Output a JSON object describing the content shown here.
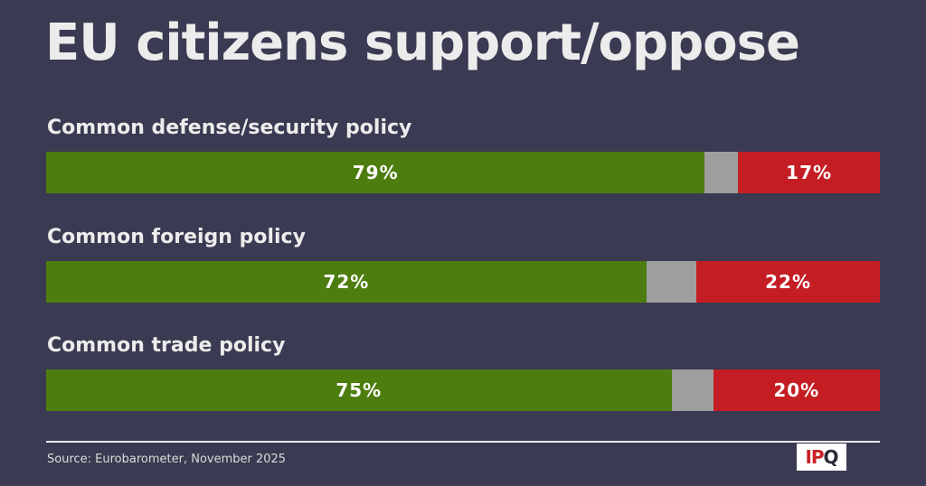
{
  "title": "EU citizens support/oppose",
  "colors": {
    "background": "#3a3a52",
    "support": "#4d7c0f",
    "undecided": "#9e9e9e",
    "oppose": "#c41e24",
    "text": "#ececec"
  },
  "chart_data": {
    "type": "bar",
    "orientation": "horizontal-stacked",
    "categories": [
      "Common defense/security policy",
      "Common foreign policy",
      "Common trade policy"
    ],
    "series": [
      {
        "color": "#4d7c0f",
        "values": [
          79,
          72,
          75
        ],
        "labels": [
          "79%",
          "72%",
          "75%"
        ]
      },
      {
        "color": "#9e9e9e",
        "values": [
          4,
          6,
          5
        ],
        "labels": [
          "",
          "",
          ""
        ]
      },
      {
        "color": "#c41e24",
        "values": [
          17,
          22,
          20
        ],
        "labels": [
          "17%",
          "22%",
          "20%"
        ]
      }
    ],
    "xlim": [
      0,
      100
    ],
    "grid": false,
    "legend": "none"
  },
  "footer": {
    "source": "Source: Eurobarometer, November 2025"
  },
  "logo": {
    "text": "IPQ",
    "part1": "IP",
    "part2": "Q"
  }
}
